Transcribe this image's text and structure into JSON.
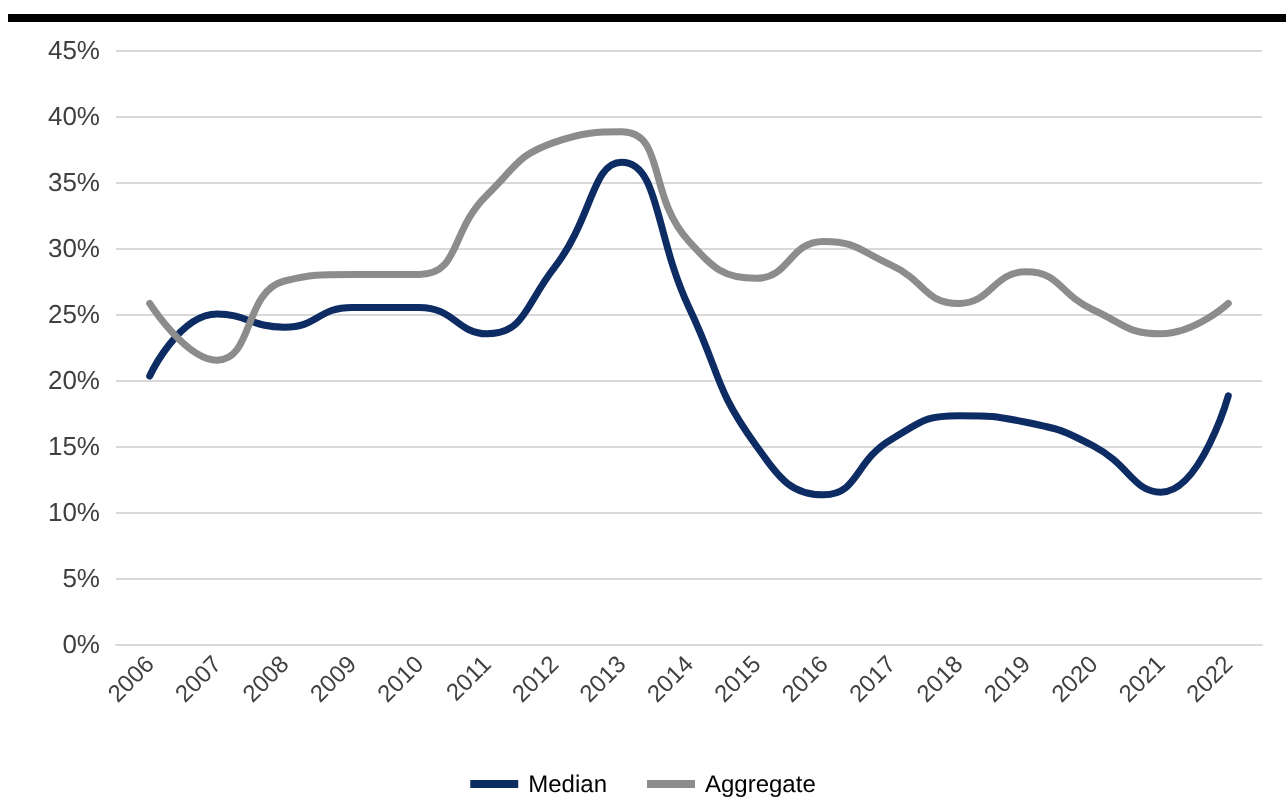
{
  "chart_data": {
    "type": "line",
    "categories": [
      "2006",
      "2007",
      "2008",
      "2009",
      "2010",
      "2011",
      "2012",
      "2013",
      "2014",
      "2015",
      "2016",
      "2017",
      "2018",
      "2019",
      "2020",
      "2021",
      "2022"
    ],
    "series": [
      {
        "name": "Median",
        "color": "#0d2c64",
        "values": [
          20.3,
          25,
          24,
          25.5,
          25.5,
          23.5,
          28.5,
          36.5,
          25.5,
          15,
          11.3,
          15.5,
          17.3,
          16.8,
          15,
          11.5,
          18.8
        ]
      },
      {
        "name": "Aggregate",
        "color": "#8c8c8c",
        "values": [
          25.8,
          21.5,
          27.5,
          28,
          28,
          34,
          38,
          38.8,
          30.5,
          27.7,
          30.5,
          28.7,
          25.8,
          28.2,
          25.3,
          23.5,
          25.8
        ]
      }
    ],
    "ylim": [
      0,
      45
    ],
    "yticks": [
      {
        "value": 0,
        "label": "0%"
      },
      {
        "value": 5,
        "label": "5%"
      },
      {
        "value": 10,
        "label": "10%"
      },
      {
        "value": 15,
        "label": "15%"
      },
      {
        "value": 20,
        "label": "20%"
      },
      {
        "value": 25,
        "label": "25%"
      },
      {
        "value": 30,
        "label": "30%"
      },
      {
        "value": 35,
        "label": "35%"
      },
      {
        "value": 40,
        "label": "40%"
      },
      {
        "value": 45,
        "label": "45%"
      }
    ],
    "grid": "y",
    "legend": "bottom",
    "marker": "none",
    "line_style": "solid"
  }
}
